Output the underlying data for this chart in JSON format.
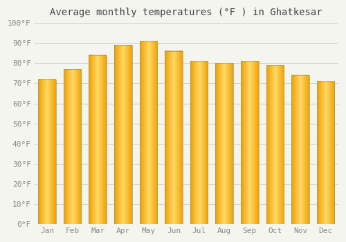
{
  "title": "Average monthly temperatures (°F ) in Ghatkesar",
  "months": [
    "Jan",
    "Feb",
    "Mar",
    "Apr",
    "May",
    "Jun",
    "Jul",
    "Aug",
    "Sep",
    "Oct",
    "Nov",
    "Dec"
  ],
  "values": [
    72,
    77,
    84,
    89,
    91,
    86,
    81,
    80,
    81,
    79,
    74,
    71
  ],
  "bar_color_center": "#FFD966",
  "bar_color_edge": "#F0A000",
  "bar_border_color": "#999966",
  "ylim": [
    0,
    100
  ],
  "yticks": [
    0,
    10,
    20,
    30,
    40,
    50,
    60,
    70,
    80,
    90,
    100
  ],
  "ytick_labels": [
    "0°F",
    "10°F",
    "20°F",
    "30°F",
    "40°F",
    "50°F",
    "60°F",
    "70°F",
    "80°F",
    "90°F",
    "100°F"
  ],
  "title_fontsize": 10,
  "tick_fontsize": 8,
  "background_color": "#f5f5f0",
  "plot_bg_color": "#f5f5f0",
  "grid_color": "#cccccc",
  "tick_color": "#888888",
  "title_color": "#444444",
  "bar_width": 0.7,
  "gradient_steps": 50
}
